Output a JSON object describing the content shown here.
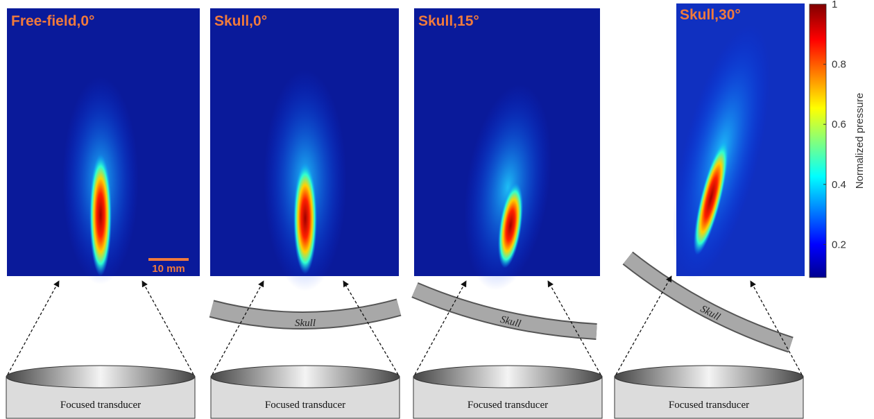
{
  "panels": [
    {
      "title": "Free-field,0°",
      "transducer": "Focused transducer"
    },
    {
      "title": "Skull,0°",
      "skull": "Skull",
      "transducer": "Focused transducer"
    },
    {
      "title": "Skull,15°",
      "skull": "Skull",
      "transducer": "Focused transducer"
    },
    {
      "title": "Skull,30°",
      "skull": "Skull",
      "transducer": "Focused transducer"
    }
  ],
  "scale_bar": "10 mm",
  "colorbar": {
    "label": "Normalized pressure",
    "lim": [
      0.09,
      1
    ],
    "ticks": [
      0.2,
      0.4,
      0.6,
      0.8,
      1
    ]
  }
}
